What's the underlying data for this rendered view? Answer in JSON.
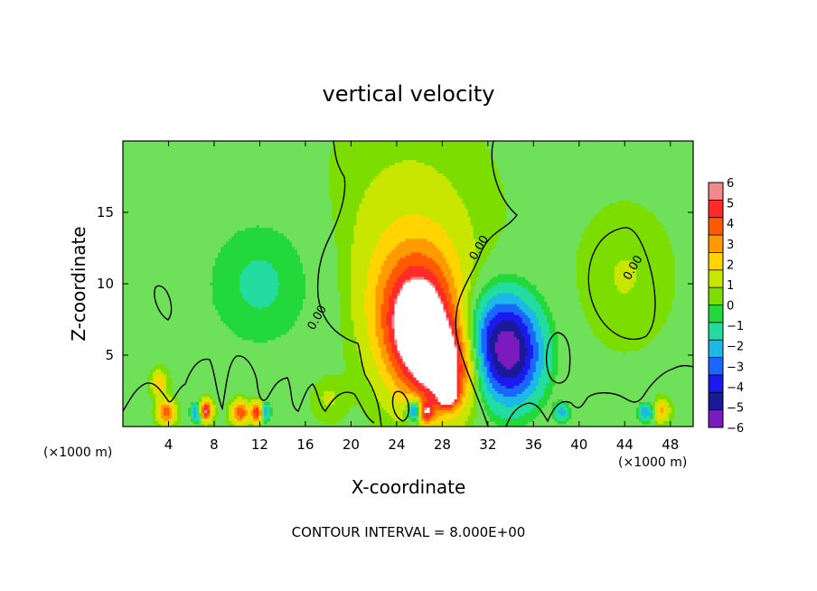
{
  "chart_data": {
    "type": "heatmap",
    "title": "vertical velocity",
    "xlabel": "X-coordinate",
    "ylabel": "Z-coordinate",
    "x_unit_label": "(×1000 m)",
    "y_unit_label": "(×1000 m)",
    "xlim": [
      0,
      50
    ],
    "ylim": [
      0,
      20
    ],
    "x_ticks": [
      4,
      8,
      12,
      16,
      20,
      24,
      28,
      32,
      36,
      40,
      44,
      48
    ],
    "y_ticks": [
      5,
      10,
      15
    ],
    "footer": "CONTOUR INTERVAL = 8.000E+00",
    "contour_labels": [
      {
        "text": "0.00",
        "x": 17.3,
        "y": 7.5
      },
      {
        "text": "0.00",
        "x": 31.5,
        "y": 12.4
      },
      {
        "text": "0.00",
        "x": 45.0,
        "y": 11.0
      }
    ],
    "colorbar": {
      "levels": [
        6,
        5,
        4,
        3,
        2,
        1,
        0,
        -1,
        -2,
        -3,
        -4,
        -5,
        -6
      ],
      "level_labels": [
        "6",
        "5",
        "4",
        "3",
        "2",
        "1",
        "0",
        "−1",
        "−2",
        "−3",
        "−4",
        "−5",
        "−6"
      ],
      "colors": [
        "#ef8a8a",
        "#ff2a2a",
        "#ff5a00",
        "#ff9a00",
        "#ffd400",
        "#c8e600",
        "#7cde00",
        "#22d83a",
        "#22dca0",
        "#1ab9e6",
        "#1a66ff",
        "#1a1aee",
        "#1a1a99",
        "#7a1abf"
      ]
    },
    "features": [
      {
        "kind": "updraft",
        "x": 26.0,
        "z": 6.5,
        "peak": 6.8,
        "sx": 2.2,
        "sz": 3.0
      },
      {
        "kind": "updraft",
        "x": 28.5,
        "z": 4.0,
        "peak": 5.5,
        "sx": 1.7,
        "sz": 2.1
      },
      {
        "kind": "updraft",
        "x": 25.5,
        "z": 9.5,
        "peak": 2.5,
        "sx": 3.2,
        "sz": 3.4
      },
      {
        "kind": "updraft",
        "x": 25.0,
        "z": 15.0,
        "peak": 0.8,
        "sx": 4.5,
        "sz": 4.5
      },
      {
        "kind": "downdraft",
        "x": 34.0,
        "z": 5.0,
        "peak": -5.5,
        "sx": 2.1,
        "sz": 2.6
      },
      {
        "kind": "downdraft",
        "x": 32.5,
        "z": 6.5,
        "peak": -2.5,
        "sx": 2.2,
        "sz": 2.5
      },
      {
        "kind": "downdraft",
        "x": 12.0,
        "z": 10.0,
        "peak": -1.5,
        "sx": 4.0,
        "sz": 3.8
      },
      {
        "kind": "downdraft",
        "x": 44.0,
        "z": 10.5,
        "peak": 0.7,
        "sx": 2.5,
        "sz": 3.0
      },
      {
        "kind": "updraft",
        "x": 3.8,
        "z": 1.0,
        "peak": 4.5,
        "sx": 0.5,
        "sz": 0.55
      },
      {
        "kind": "updraft",
        "x": 7.2,
        "z": 1.1,
        "peak": 6.5,
        "sx": 0.4,
        "sz": 0.5
      },
      {
        "kind": "downdraft",
        "x": 6.5,
        "z": 1.0,
        "peak": -4.0,
        "sx": 0.4,
        "sz": 0.5
      },
      {
        "kind": "updraft",
        "x": 10.3,
        "z": 1.0,
        "peak": 4.5,
        "sx": 0.55,
        "sz": 0.55
      },
      {
        "kind": "updraft",
        "x": 11.8,
        "z": 1.0,
        "peak": 6.0,
        "sx": 0.35,
        "sz": 0.5
      },
      {
        "kind": "downdraft",
        "x": 12.4,
        "z": 1.0,
        "peak": -3.5,
        "sx": 0.35,
        "sz": 0.5
      },
      {
        "kind": "downdraft",
        "x": 25.6,
        "z": 1.1,
        "peak": -5.5,
        "sx": 0.5,
        "sz": 0.55
      },
      {
        "kind": "updraft",
        "x": 26.5,
        "z": 1.0,
        "peak": 4.5,
        "sx": 0.5,
        "sz": 0.5
      },
      {
        "kind": "updraft",
        "x": 28.5,
        "z": 2.2,
        "peak": 6.5,
        "sx": 0.5,
        "sz": 0.5
      },
      {
        "kind": "downdraft",
        "x": 38.5,
        "z": 1.0,
        "peak": -2.5,
        "sx": 0.5,
        "sz": 0.5
      },
      {
        "kind": "downdraft",
        "x": 45.8,
        "z": 1.0,
        "peak": -3.0,
        "sx": 0.5,
        "sz": 0.5
      },
      {
        "kind": "updraft",
        "x": 47.2,
        "z": 1.1,
        "peak": 3.0,
        "sx": 0.45,
        "sz": 0.5
      },
      {
        "kind": "updraft",
        "x": 3.2,
        "z": 3.0,
        "peak": 2.5,
        "sx": 0.45,
        "sz": 0.6
      },
      {
        "kind": "updraft",
        "x": 18.0,
        "z": 2.0,
        "peak": 0.8,
        "sx": 1.0,
        "sz": 1.0
      }
    ]
  }
}
